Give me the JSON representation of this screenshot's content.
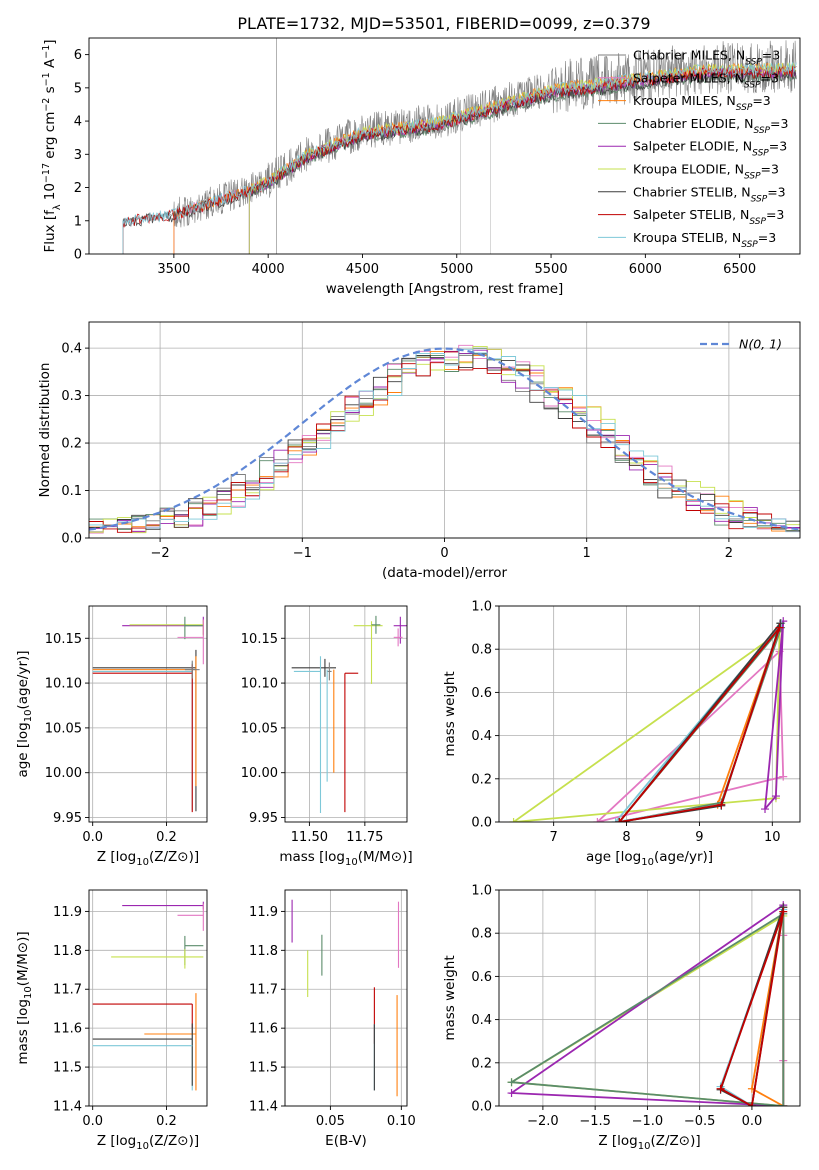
{
  "colors": {
    "Chabrier MILES": "#7f7f7f",
    "Salpeter MILES": "#e377c2",
    "Kroupa MILES": "#ff7f0e",
    "Chabrier ELODIE": "#5b8c6b",
    "Salpeter ELODIE": "#9b27b0",
    "Kroupa ELODIE": "#c6e04e",
    "Chabrier STELIB": "#3d3d3d",
    "Salpeter STELIB": "#c00000",
    "Kroupa STELIB": "#7ec8d8",
    "normal": "#5f87d6",
    "grid": "#b0b0b0"
  },
  "chart_data": [
    {
      "id": "spectrum",
      "type": "line",
      "title": "PLATE=1732, MJD=53501, FIBERID=0099, z=0.379",
      "xlabel": "wavelength [Angstrom, rest frame]",
      "ylabel": "Flux [f_λ 10^-17 erg cm^-2 s^-1 A^-1]",
      "xlim": [
        3050,
        6820
      ],
      "ylim": [
        0,
        6.5
      ],
      "xticks": [
        3500,
        4000,
        4500,
        5000,
        5500,
        6000,
        6500
      ],
      "yticks": [
        0,
        1,
        2,
        3,
        4,
        5,
        6
      ],
      "grid": false,
      "legend": "upper-right",
      "data_range": [
        3230,
        6800
      ],
      "continuum_anchors": [
        [
          3230,
          1.0
        ],
        [
          3500,
          1.2
        ],
        [
          3900,
          1.95
        ],
        [
          4000,
          2.2
        ],
        [
          4200,
          3.0
        ],
        [
          4500,
          3.7
        ],
        [
          4900,
          4.0
        ],
        [
          5200,
          4.5
        ],
        [
          5500,
          5.0
        ],
        [
          5900,
          5.3
        ],
        [
          6300,
          5.6
        ],
        [
          6800,
          5.65
        ]
      ],
      "series": [
        {
          "name": "Chabrier MILES",
          "label": "Chabrier MILES, N",
          "start": 3500
        },
        {
          "name": "Salpeter MILES",
          "label": "Salpeter MILES, N",
          "start": 3500
        },
        {
          "name": "Kroupa MILES",
          "label": "Kroupa MILES, N",
          "start": 3500
        },
        {
          "name": "Chabrier ELODIE",
          "label": "Chabrier ELODIE, N",
          "start": 3900
        },
        {
          "name": "Salpeter ELODIE",
          "label": "Salpeter ELODIE, N",
          "start": 3900
        },
        {
          "name": "Kroupa ELODIE",
          "label": "Kroupa ELODIE, N",
          "start": 3900
        },
        {
          "name": "Chabrier STELIB",
          "label": "Chabrier STELIB, N",
          "start": 3230
        },
        {
          "name": "Salpeter STELIB",
          "label": "Salpeter STELIB, N",
          "start": 3230
        },
        {
          "name": "Kroupa STELIB",
          "label": "Kroupa STELIB, N",
          "start": 3230
        }
      ],
      "legend_subscript": "SSP",
      "legend_suffix": "=3"
    },
    {
      "id": "residuals",
      "type": "step",
      "xlabel": "(data-model)/error",
      "ylabel": "Normed distribution",
      "xlim": [
        -2.5,
        2.5
      ],
      "ylim": [
        0,
        0.455
      ],
      "xticks": [
        -2,
        -1,
        0,
        1,
        2
      ],
      "yticks": [
        0.0,
        0.1,
        0.2,
        0.3,
        0.4
      ],
      "grid": true,
      "legend": "upper-right",
      "normal_label": "N(0, 1)",
      "bin_width": 0.1,
      "series": [
        "Chabrier MILES",
        "Salpeter MILES",
        "Kroupa MILES",
        "Chabrier ELODIE",
        "Salpeter ELODIE",
        "Kroupa ELODIE",
        "Chabrier STELIB",
        "Salpeter STELIB",
        "Kroupa STELIB"
      ]
    },
    {
      "id": "age_vs_Z",
      "type": "errorbar",
      "xlabel": "Z [log10(Z/Z⊙)]",
      "ylabel": "age [log10(age/yr)]",
      "xlim": [
        -0.01,
        0.31
      ],
      "ylim": [
        9.945,
        10.186
      ],
      "xticks": [
        0.0,
        0.2
      ],
      "yticks": [
        9.95,
        10.0,
        10.05,
        10.1,
        10.15
      ],
      "grid": true,
      "points": [
        {
          "s": "Salpeter ELODIE",
          "x": 0.3,
          "xe": [
            0.22,
            0
          ],
          "y": 10.164,
          "ye": [
            0.01,
            0.01
          ]
        },
        {
          "s": "Kroupa ELODIE",
          "x": 0.3,
          "xe": [
            0.2,
            0
          ],
          "y": 10.165,
          "ye": [
            0.012,
            0.005
          ]
        },
        {
          "s": "Chabrier ELODIE",
          "x": 0.25,
          "xe": [
            0.0,
            0.05
          ],
          "y": 10.164,
          "ye": [
            0.015,
            0.01
          ]
        },
        {
          "s": "Salpeter MILES",
          "x": 0.3,
          "xe": [
            0.07,
            0
          ],
          "y": 10.151,
          "ye": [
            0.03,
            0.02
          ]
        },
        {
          "s": "Chabrier STELIB",
          "x": 0.28,
          "xe": [
            0.28,
            0
          ],
          "y": 10.117,
          "ye": [
            0.16,
            0.02
          ]
        },
        {
          "s": "Kroupa MILES",
          "x": 0.28,
          "xe": [
            0.28,
            0
          ],
          "y": 10.115,
          "ye": [
            0.13,
            0.015
          ]
        },
        {
          "s": "Kroupa STELIB",
          "x": 0.27,
          "xe": [
            0.27,
            0
          ],
          "y": 10.113,
          "ye": [
            0.155,
            0.01
          ]
        },
        {
          "s": "Salpeter STELIB",
          "x": 0.27,
          "xe": [
            0.27,
            0
          ],
          "y": 10.111,
          "ye": [
            0.155,
            0.01
          ]
        },
        {
          "s": "Chabrier MILES",
          "x": 0.27,
          "xe": [
            0.02,
            0.02
          ],
          "y": 10.115,
          "ye": [
            0.01,
            0.01
          ]
        }
      ]
    },
    {
      "id": "age_vs_mass",
      "type": "errorbar",
      "xlabel": "mass [log10(M/M⊙)]",
      "ylabel": "",
      "xlim": [
        11.39,
        11.94
      ],
      "ylim": [
        9.945,
        10.186
      ],
      "xticks": [
        11.5,
        11.75
      ],
      "yticks": [
        9.95,
        10.0,
        10.05,
        10.1,
        10.15
      ],
      "grid": true,
      "points": [
        {
          "s": "Salpeter ELODIE",
          "x": 11.91,
          "xe": [
            0.03,
            0.03
          ],
          "y": 10.164,
          "ye": [
            0.02,
            0.01
          ]
        },
        {
          "s": "Kroupa ELODIE",
          "x": 11.78,
          "xe": [
            0.08,
            0.05
          ],
          "y": 10.164,
          "ye": [
            0.065,
            0.005
          ]
        },
        {
          "s": "Chabrier ELODIE",
          "x": 11.8,
          "xe": [
            0.02,
            0.02
          ],
          "y": 10.165,
          "ye": [
            0.01,
            0.01
          ]
        },
        {
          "s": "Salpeter MILES",
          "x": 11.9,
          "xe": [
            0.02,
            0.02
          ],
          "y": 10.151,
          "ye": [
            0.01,
            0.01
          ]
        },
        {
          "s": "Chabrier STELIB",
          "x": 11.57,
          "xe": [
            0.15,
            0.05
          ],
          "y": 10.117,
          "ye": [
            0.01,
            0.01
          ]
        },
        {
          "s": "Kroupa MILES",
          "x": 11.61,
          "xe": [
            0.0,
            0.0
          ],
          "y": 10.115,
          "ye": [
            0.115,
            0.0
          ]
        },
        {
          "s": "Kroupa STELIB",
          "x": 11.55,
          "xe": [
            0.12,
            0.0
          ],
          "y": 10.113,
          "ye": [
            0.158,
            0.017
          ]
        },
        {
          "s": "Salpeter STELIB",
          "x": 11.66,
          "xe": [
            0.0,
            0.06
          ],
          "y": 10.111,
          "ye": [
            0.155,
            0.0
          ]
        },
        {
          "s": "Chabrier MILES",
          "x": 11.59,
          "xe": [
            0.01,
            0.01
          ],
          "y": 10.113,
          "ye": [
            0.01,
            0.01
          ]
        },
        {
          "s": "Kroupa STELIB",
          "x": 11.58,
          "xe": [
            0.0,
            0.0
          ],
          "y": 10.115,
          "ye": [
            0.125,
            0.0
          ]
        }
      ]
    },
    {
      "id": "weight_vs_age",
      "type": "line",
      "xlabel": "age [log10(age/yr)]",
      "ylabel": "mass weight",
      "xlim": [
        6.25,
        10.38
      ],
      "ylim": [
        0,
        1.0
      ],
      "xticks": [
        7,
        8,
        9,
        10
      ],
      "yticks": [
        0.0,
        0.2,
        0.4,
        0.6,
        0.8,
        1.0
      ],
      "grid": true,
      "series": [
        {
          "s": "Salpeter MILES",
          "x": [
            10.15,
            7.6,
            10.1,
            10.15
          ],
          "y": [
            0.21,
            0.0,
            0.79,
            0.21
          ]
        },
        {
          "s": "Kroupa ELODIE",
          "x": [
            6.45,
            10.05,
            10.1,
            6.45
          ],
          "y": [
            0.0,
            0.11,
            0.88,
            0.0
          ]
        },
        {
          "s": "Kroupa MILES",
          "x": [
            9.25,
            10.12,
            7.9,
            9.25
          ],
          "y": [
            0.08,
            0.92,
            0.0,
            0.08
          ]
        },
        {
          "s": "Chabrier ELODIE",
          "x": [
            7.9,
            9.3,
            10.12,
            7.9
          ],
          "y": [
            0.0,
            0.09,
            0.9,
            0.0
          ]
        },
        {
          "s": "Salpeter ELODIE",
          "x": [
            9.9,
            10.15,
            10.05,
            9.9
          ],
          "y": [
            0.06,
            0.93,
            0.12,
            0.06
          ]
        },
        {
          "s": "Kroupa STELIB",
          "x": [
            7.85,
            9.3,
            10.12,
            7.85
          ],
          "y": [
            0.0,
            0.08,
            0.92,
            0.0
          ]
        },
        {
          "s": "Chabrier STELIB",
          "x": [
            7.9,
            9.3,
            10.11,
            7.9
          ],
          "y": [
            0.0,
            0.075,
            0.92,
            0.0
          ]
        },
        {
          "s": "Salpeter STELIB",
          "x": [
            7.9,
            9.3,
            10.1,
            7.9
          ],
          "y": [
            0.0,
            0.08,
            0.9,
            0.0
          ]
        }
      ]
    },
    {
      "id": "mass_vs_Z",
      "type": "errorbar",
      "xlabel": "Z [log10(Z/Z⊙)]",
      "ylabel": "mass [log10(M/M⊙)]",
      "xlim": [
        -0.01,
        0.31
      ],
      "ylim": [
        11.4,
        11.955
      ],
      "xticks": [
        0.0,
        0.2
      ],
      "yticks": [
        11.4,
        11.5,
        11.6,
        11.7,
        11.8,
        11.9
      ],
      "grid": true,
      "points": [
        {
          "s": "Salpeter ELODIE",
          "x": 0.3,
          "xe": [
            0.22,
            0
          ],
          "y": 11.915,
          "ye": [
            0.01,
            0.01
          ]
        },
        {
          "s": "Salpeter MILES",
          "x": 0.3,
          "xe": [
            0.07,
            0
          ],
          "y": 11.89,
          "ye": [
            0.04,
            0.03
          ]
        },
        {
          "s": "Chabrier ELODIE",
          "x": 0.25,
          "xe": [
            0.0,
            0.05
          ],
          "y": 11.812,
          "ye": [
            0.05,
            0.025
          ]
        },
        {
          "s": "Kroupa ELODIE",
          "x": 0.25,
          "xe": [
            0.2,
            0.05
          ],
          "y": 11.783,
          "ye": [
            0.03,
            0.02
          ]
        },
        {
          "s": "Salpeter STELIB",
          "x": 0.27,
          "xe": [
            0.27,
            0
          ],
          "y": 11.662,
          "ye": [
            0.08,
            0.0
          ]
        },
        {
          "s": "Kroupa MILES",
          "x": 0.28,
          "xe": [
            0.0,
            0.0
          ],
          "y": 11.61,
          "ye": [
            0.17,
            0.08
          ]
        },
        {
          "s": "Kroupa STELIB",
          "x": 0.27,
          "xe": [
            0.0,
            0.0
          ],
          "y": 11.6,
          "ye": [
            0.16,
            0.0
          ]
        },
        {
          "s": "Kroupa MILES",
          "x": 0.28,
          "xe": [
            0.14,
            0.0
          ],
          "y": 11.585,
          "ye": [
            0.0,
            0.0
          ]
        },
        {
          "s": "Chabrier STELIB",
          "x": 0.27,
          "xe": [
            0.27,
            0.0
          ],
          "y": 11.572,
          "ye": [
            0.12,
            0.04
          ]
        },
        {
          "s": "Kroupa STELIB",
          "x": 0.27,
          "xe": [
            0.27,
            0.0
          ],
          "y": 11.555,
          "ye": [
            0.0,
            0.0
          ]
        }
      ]
    },
    {
      "id": "mass_vs_ebv",
      "type": "errorbar",
      "xlabel": "E(B-V)",
      "ylabel": "",
      "xlim": [
        0.018,
        0.104
      ],
      "ylim": [
        11.4,
        11.955
      ],
      "xticks": [
        0.05,
        0.1
      ],
      "yticks": [
        11.4,
        11.5,
        11.6,
        11.7,
        11.8,
        11.9
      ],
      "grid": true,
      "points": [
        {
          "s": "Salpeter ELODIE",
          "x": 0.023,
          "y": 11.875,
          "ye": [
            0.055,
            0.055
          ]
        },
        {
          "s": "Kroupa ELODIE",
          "x": 0.034,
          "y": 11.74,
          "ye": [
            0.06,
            0.06
          ]
        },
        {
          "s": "Chabrier ELODIE",
          "x": 0.044,
          "y": 11.785,
          "ye": [
            0.05,
            0.055
          ]
        },
        {
          "s": "Salpeter STELIB",
          "x": 0.081,
          "y": 11.62,
          "ye": [
            0.06,
            0.085
          ]
        },
        {
          "s": "Kroupa STELIB",
          "x": 0.081,
          "y": 11.525,
          "ye": [
            0.085,
            0.085
          ]
        },
        {
          "s": "Chabrier STELIB",
          "x": 0.081,
          "y": 11.52,
          "ye": [
            0.08,
            0.09
          ]
        },
        {
          "s": "Kroupa MILES",
          "x": 0.097,
          "y": 11.555,
          "ye": [
            0.13,
            0.13
          ]
        },
        {
          "s": "Salpeter MILES",
          "x": 0.098,
          "y": 11.84,
          "ye": [
            0.085,
            0.085
          ]
        }
      ]
    },
    {
      "id": "weight_vs_Z",
      "type": "line",
      "xlabel": "Z [log10(Z/Z⊙)]",
      "ylabel": "mass weight",
      "xlim": [
        -2.42,
        0.46
      ],
      "ylim": [
        0,
        1.0
      ],
      "xticks": [
        -2.0,
        -1.5,
        -1.0,
        -0.5,
        0.0
      ],
      "yticks": [
        0.0,
        0.2,
        0.4,
        0.6,
        0.8,
        1.0
      ],
      "grid": true,
      "series": [
        {
          "s": "Salpeter MILES",
          "x": [
            0.3,
            0.3,
            0.3,
            0.3
          ],
          "y": [
            0.0,
            0.21,
            0.79,
            0.0
          ]
        },
        {
          "s": "Kroupa MILES",
          "x": [
            0.3,
            0.0,
            0.3,
            0.3
          ],
          "y": [
            0.0,
            0.08,
            0.92,
            0.0
          ]
        },
        {
          "s": "Kroupa ELODIE",
          "x": [
            0.3,
            -2.3,
            0.3,
            0.3
          ],
          "y": [
            0.0,
            0.11,
            0.88,
            0.0
          ]
        },
        {
          "s": "Salpeter ELODIE",
          "x": [
            0.3,
            -2.3,
            0.3,
            0.3
          ],
          "y": [
            0.0,
            0.06,
            0.93,
            0.0
          ]
        },
        {
          "s": "Chabrier ELODIE",
          "x": [
            0.3,
            -2.3,
            0.3,
            0.3
          ],
          "y": [
            0.0,
            0.11,
            0.89,
            0.0
          ]
        },
        {
          "s": "Kroupa STELIB",
          "x": [
            0.0,
            -0.3,
            0.3,
            0.0
          ],
          "y": [
            0.0,
            0.09,
            0.91,
            0.0
          ]
        },
        {
          "s": "Chabrier STELIB",
          "x": [
            0.0,
            -0.3,
            0.3,
            0.0
          ],
          "y": [
            0.0,
            0.075,
            0.92,
            0.0
          ]
        },
        {
          "s": "Salpeter STELIB",
          "x": [
            0.0,
            -0.3,
            0.3,
            0.0
          ],
          "y": [
            0.0,
            0.08,
            0.9,
            0.0
          ]
        }
      ]
    }
  ]
}
